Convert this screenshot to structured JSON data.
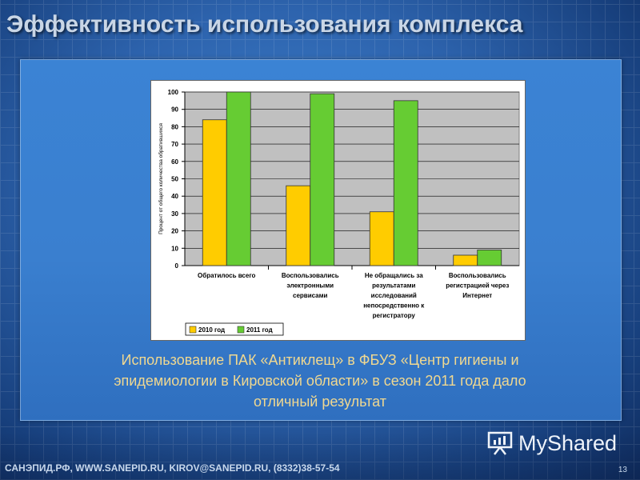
{
  "slide": {
    "title": "Эффективность использования комплекса",
    "caption_lines": [
      "Использование ПАК «Антиклещ» в ФБУЗ «Центр гигиены и",
      "эпидемиологии в Кировской области» в сезон 2011 года дало",
      "отличный результат"
    ],
    "footer": "САНЭПИД.РФ, WWW.SANEPID.RU, KIROV@SANEPID.RU, (8332)38-57-54",
    "page_number": "13",
    "brand": "MyShared",
    "brand_icon": "presentation-board-icon"
  },
  "colors": {
    "series_2010": "#ffcc00",
    "series_2011": "#66cc33",
    "plot_bg": "#c0c0c0",
    "caption": "#f0d890"
  },
  "chart_data": {
    "type": "bar",
    "ylabel": "Процент от общего количества обратившихся",
    "ylim": [
      0,
      100
    ],
    "yticks": [
      0,
      10,
      20,
      30,
      40,
      50,
      60,
      70,
      80,
      90,
      100
    ],
    "grid": true,
    "legend_position": "bottom-left",
    "categories": [
      [
        "Обратилось всего"
      ],
      [
        "Воспользовались",
        "электронными",
        "сервисами"
      ],
      [
        "Не обращались за",
        "результатами",
        "исследований",
        "непосредственно к",
        "регистратору"
      ],
      [
        "Воспользовались",
        "регистрацией через",
        "Интернет"
      ]
    ],
    "series": [
      {
        "name": "2010 год",
        "values": [
          84,
          46,
          31,
          6
        ]
      },
      {
        "name": "2011 год",
        "values": [
          100,
          99,
          95,
          9
        ]
      }
    ]
  }
}
